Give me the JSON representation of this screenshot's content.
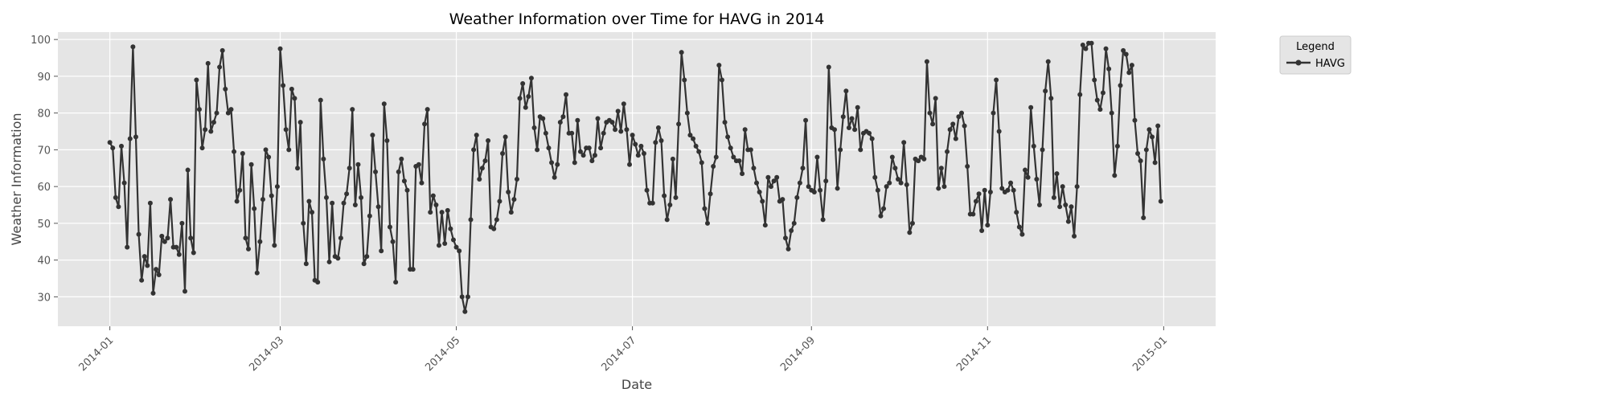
{
  "chart_data": {
    "type": "line",
    "title": "Weather Information over Time for HAVG in 2014",
    "xlabel": "Date",
    "ylabel": "Weather Information",
    "x_range": [
      "2013-12-14",
      "2015-01-19"
    ],
    "ylim": [
      22,
      102
    ],
    "x_ticks": [
      "2014-01-01",
      "2014-03-01",
      "2014-05-01",
      "2014-07-01",
      "2014-09-01",
      "2014-11-01",
      "2015-01-01"
    ],
    "x_tick_labels": [
      "2014-01",
      "2014-03",
      "2014-05",
      "2014-07",
      "2014-09",
      "2014-11",
      "2015-01"
    ],
    "y_ticks": [
      30,
      40,
      50,
      60,
      70,
      80,
      90,
      100
    ],
    "grid": true,
    "legend": {
      "title": "Legend",
      "placement": "outside-top-right"
    },
    "colors": {
      "plot_background": "#e5e5e5",
      "grid": "#ffffff",
      "series": "#333333"
    },
    "series": [
      {
        "name": "HAVG",
        "start_date": "2014-01-01",
        "step_days": 1,
        "values": [
          72,
          70.5,
          57,
          54.5,
          71,
          61,
          43.5,
          73,
          98,
          73.5,
          47,
          34.5,
          41,
          38.5,
          55.5,
          31,
          37.5,
          36,
          46.5,
          45,
          46,
          56.5,
          43.5,
          43.5,
          41.5,
          50,
          31.5,
          64.5,
          46,
          42,
          89,
          81,
          70.5,
          75.5,
          93.5,
          75,
          77.5,
          80,
          92.5,
          97,
          86.5,
          80,
          81,
          69.5,
          56,
          59,
          69,
          46,
          43,
          66,
          54,
          36.5,
          45,
          56.5,
          70,
          68,
          57.5,
          44,
          60,
          97.5,
          87.5,
          75.5,
          70,
          86.5,
          84,
          65,
          77.5,
          50,
          39,
          56,
          53,
          34.5,
          34,
          83.5,
          67.5,
          57,
          39.5,
          55.5,
          41,
          40.5,
          46,
          55.5,
          58,
          65,
          81,
          55,
          66,
          57,
          39,
          41,
          52,
          74,
          64,
          54.5,
          42.5,
          82.5,
          72.5,
          49,
          45,
          34,
          64,
          67.5,
          61.5,
          59,
          37.5,
          37.5,
          65.5,
          66,
          61,
          77,
          81,
          53,
          57.5,
          55,
          44,
          53,
          44.5,
          53.5,
          48.5,
          45.5,
          43.5,
          42.5,
          30,
          26,
          30,
          51,
          70,
          74,
          62,
          65,
          67,
          72.5,
          49,
          48.5,
          51,
          56,
          69,
          73.5,
          58.5,
          53,
          56.5,
          62,
          84,
          88,
          81.5,
          84.5,
          89.5,
          76,
          70,
          79,
          78.5,
          74.5,
          70.5,
          66.5,
          62.5,
          66,
          77.5,
          79,
          85,
          74.5,
          74.5,
          66.5,
          78,
          69.5,
          68.5,
          70.5,
          70.5,
          67,
          68.5,
          78.5,
          70.5,
          74.5,
          77.5,
          78,
          77.5,
          75.5,
          80.5,
          75,
          82.5,
          75.5,
          66,
          74,
          71.5,
          68.5,
          71,
          69,
          59,
          55.5,
          55.5,
          72,
          76,
          72.5,
          57.5,
          51,
          55,
          67.5,
          57,
          77,
          96.5,
          89,
          80,
          74,
          73,
          71,
          69.5,
          66.5,
          54,
          50,
          58,
          65.5,
          68,
          93,
          89,
          77.5,
          73.5,
          70.5,
          68,
          67,
          67,
          63.5,
          75.5,
          70,
          70,
          65,
          61,
          58.5,
          56,
          49.5,
          62.5,
          60,
          61.5,
          62.5,
          56,
          56.5,
          46,
          43,
          48,
          50,
          57,
          61,
          65,
          78,
          60,
          59,
          58.5,
          68,
          59,
          51,
          61.5,
          92.5,
          76,
          75.5,
          59.5,
          70,
          79,
          86,
          76,
          78.5,
          75.5,
          81.5,
          70,
          74.5,
          75,
          74.5,
          73,
          62.5,
          59,
          52,
          54,
          60,
          61,
          68,
          65,
          62,
          61,
          72,
          60.5,
          47.5,
          50,
          67.5,
          67,
          68,
          67.5,
          94,
          80,
          77,
          84,
          59.5,
          65,
          60,
          69.5,
          75.5,
          77,
          73,
          79,
          80,
          76.5,
          65.5,
          52.5,
          52.5,
          56,
          58,
          48,
          59,
          49.5,
          58.5,
          80,
          89,
          75,
          59.5,
          58.5,
          59,
          61,
          59,
          53,
          49,
          47,
          64.5,
          62.5,
          81.5,
          71,
          62,
          55,
          70,
          86,
          94,
          84,
          57,
          63.5,
          54.5,
          60,
          55,
          50.5,
          54.5,
          46.5,
          60,
          85,
          98.5,
          97.5,
          99,
          99,
          89,
          83.5,
          81,
          85.5,
          97.5,
          92,
          80,
          63,
          71,
          87.5,
          97,
          96,
          91,
          93,
          78,
          69,
          67,
          51.5,
          70,
          75.5,
          73.5,
          66.5,
          76.5,
          56
        ]
      }
    ]
  }
}
